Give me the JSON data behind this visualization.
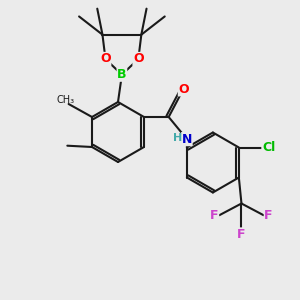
{
  "bg_color": "#ebebeb",
  "bond_color": "#1a1a1a",
  "atom_colors": {
    "O": "#ff0000",
    "B": "#00cc00",
    "N": "#0000cc",
    "Cl": "#00bb00",
    "F": "#cc44cc",
    "C": "#1a1a1a",
    "H": "#44aaaa"
  },
  "figsize": [
    3.0,
    3.0
  ],
  "dpi": 100
}
